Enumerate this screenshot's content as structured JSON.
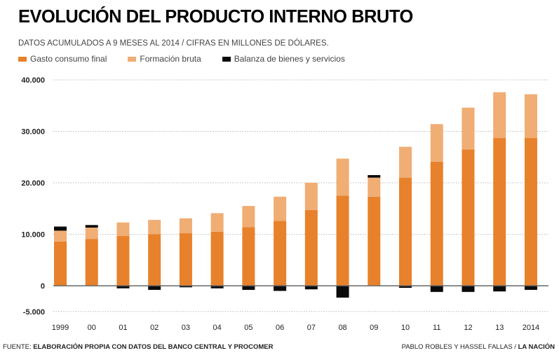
{
  "title": "EVOLUCIÓN DEL PRODUCTO INTERNO BRUTO",
  "subtitle": "DATOS ACUMULADOS A 9 MESES AL 2014 / CIFRAS EN MILLONES DE DÓLARES.",
  "colors": {
    "gasto": "#e8812b",
    "formacion": "#f0ad74",
    "balanza": "#0a0a0a",
    "grid": "#bbbbbb",
    "axis": "#666666"
  },
  "footer": {
    "source_label": "FUENTE:",
    "source_text": "ELABORACIÓN PROPIA CON DATOS DEL BANCO CENTRAL Y PROCOMER",
    "authors": "PABLO ROBLES Y HASSEL FALLAS /",
    "outlet": "LA NACIÓN"
  },
  "chart_data": {
    "type": "bar",
    "stacked": true,
    "title": "EVOLUCIÓN DEL PRODUCTO INTERNO BRUTO",
    "xlabel": "",
    "ylabel": "",
    "ylim": [
      -5000,
      40000
    ],
    "yticks": [
      40000,
      30000,
      20000,
      10000,
      0,
      -5000
    ],
    "ytick_labels": [
      "40.000",
      "30.000",
      "20.000",
      "10.000",
      "0",
      "-5.000"
    ],
    "grid": true,
    "legend_position": "top-left",
    "categories": [
      "1999",
      "00",
      "01",
      "02",
      "03",
      "04",
      "05",
      "06",
      "07",
      "08",
      "09",
      "10",
      "11",
      "12",
      "13",
      "2014"
    ],
    "series": [
      {
        "name": "Gasto consumo final",
        "values": [
          8600,
          9100,
          9700,
          10000,
          10200,
          10500,
          11400,
          12600,
          14700,
          17500,
          17300,
          21000,
          24100,
          26500,
          28700,
          28700
        ]
      },
      {
        "name": "Formación bruta",
        "values": [
          2100,
          2200,
          2600,
          2800,
          2900,
          3600,
          4100,
          4700,
          5300,
          7200,
          3700,
          6000,
          7300,
          8100,
          8900,
          8500
        ]
      },
      {
        "name": "Balanza de bienes y servicios",
        "values": [
          800,
          500,
          -500,
          -800,
          -300,
          -500,
          -800,
          -1000,
          -700,
          -2300,
          500,
          -400,
          -1200,
          -1200,
          -1100,
          -800
        ]
      }
    ]
  }
}
